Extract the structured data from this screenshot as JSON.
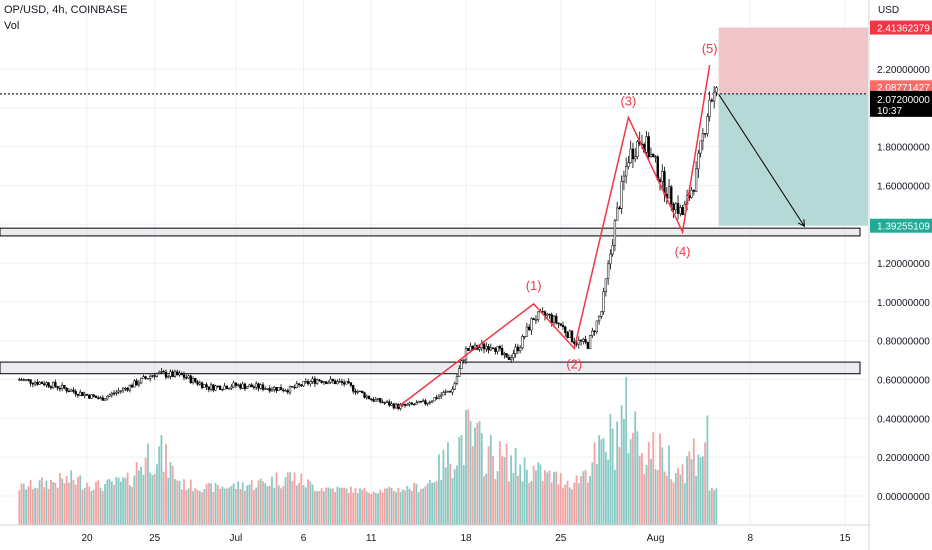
{
  "header": {
    "symbol_line": "OP/USD, 4h, COINBASE",
    "indicator": "Vol"
  },
  "price_axis": {
    "currency": "USD",
    "ticks": [
      "2.20000000",
      "2.00000000",
      "1.80000000",
      "1.60000000",
      "1.40000000",
      "1.20000000",
      "1.00000000",
      "0.80000000",
      "0.60000000",
      "0.40000000",
      "0.20000000",
      "0.00000000"
    ],
    "tick_values": [
      2.2,
      2.0,
      1.8,
      1.6,
      1.4,
      1.2,
      1.0,
      0.8,
      0.6,
      0.4,
      0.2,
      0.0
    ]
  },
  "time_axis": {
    "labels": [
      "20",
      "25",
      "Jul",
      "6",
      "11",
      "18",
      "25",
      "Aug",
      "8",
      "15"
    ]
  },
  "price_tags": {
    "stop": "2.41362379",
    "last_close": "2.08771427",
    "current": "2.07200000",
    "countdown": "10:37",
    "target": "1.39255109"
  },
  "wave_labels": [
    "(1)",
    "(2)",
    "(3)",
    "(4)",
    "(5)"
  ],
  "colors": {
    "candle": "#000000",
    "volume_up": "#89c9c4",
    "volume_down": "#f3a3a3",
    "wave_line": "#f23645",
    "wave_text": "#f23645",
    "stop_zone": "#f0c5c9",
    "target_zone": "#b5d9d6",
    "stop_tag": "#f23645",
    "target_tag": "#22ab94",
    "price_tag": "#000000",
    "grid": "#eef0f3",
    "zone_box": "#d1d4dc"
  },
  "chart_data": {
    "type": "line",
    "title": "OP/USD, 4h, COINBASE",
    "xlabel": "",
    "ylabel": "",
    "ylim": [
      -0.05,
      2.55
    ],
    "x": [
      "2022-06-20",
      "2022-06-25",
      "2022-07-01",
      "2022-07-06",
      "2022-07-11",
      "2022-07-18",
      "2022-07-25",
      "2022-08-01",
      "2022-08-08",
      "2022-08-15"
    ],
    "series": [
      {
        "values": [
          [
            "2022-06-15",
            0.6
          ],
          [
            "2022-06-17",
            0.58
          ],
          [
            "2022-06-19",
            0.54
          ],
          [
            "2022-06-21",
            0.5
          ],
          [
            "2022-06-23",
            0.56
          ],
          [
            "2022-06-25",
            0.63
          ],
          [
            "2022-06-27",
            0.62
          ],
          [
            "2022-06-29",
            0.56
          ],
          [
            "2022-07-01",
            0.57
          ],
          [
            "2022-07-03",
            0.56
          ],
          [
            "2022-07-05",
            0.55
          ],
          [
            "2022-07-07",
            0.6
          ],
          [
            "2022-07-09",
            0.58
          ],
          [
            "2022-07-11",
            0.5
          ],
          [
            "2022-07-13",
            0.46
          ],
          [
            "2022-07-15",
            0.48
          ],
          [
            "2022-07-17",
            0.55
          ],
          [
            "2022-07-18",
            0.75
          ],
          [
            "2022-07-20",
            0.78
          ],
          [
            "2022-07-21",
            0.7
          ],
          [
            "2022-07-22",
            0.78
          ],
          [
            "2022-07-23",
            0.92
          ],
          [
            "2022-07-24",
            0.93
          ],
          [
            "2022-07-25",
            0.88
          ],
          [
            "2022-07-26",
            0.8
          ],
          [
            "2022-07-27",
            0.78
          ],
          [
            "2022-07-28",
            0.95
          ],
          [
            "2022-07-29",
            1.4
          ],
          [
            "2022-07-30",
            1.75
          ],
          [
            "2022-07-31",
            1.85
          ],
          [
            "2022-08-01",
            1.7
          ],
          [
            "2022-08-02",
            1.55
          ],
          [
            "2022-08-03",
            1.45
          ],
          [
            "2022-08-04",
            1.65
          ],
          [
            "2022-08-05",
            2.05
          ],
          [
            "2022-08-05T16:00",
            2.072
          ]
        ]
      }
    ],
    "volume": [
      [
        "2022-06-15",
        0.05
      ],
      [
        "2022-06-17",
        0.08
      ],
      [
        "2022-06-19",
        0.1
      ],
      [
        "2022-06-21",
        0.06
      ],
      [
        "2022-06-23",
        0.09
      ],
      [
        "2022-06-25",
        0.3
      ],
      [
        "2022-06-27",
        0.07
      ],
      [
        "2022-06-29",
        0.05
      ],
      [
        "2022-07-01",
        0.06
      ],
      [
        "2022-07-03",
        0.08
      ],
      [
        "2022-07-05",
        0.12
      ],
      [
        "2022-07-07",
        0.05
      ],
      [
        "2022-07-09",
        0.04
      ],
      [
        "2022-07-11",
        0.03
      ],
      [
        "2022-07-13",
        0.04
      ],
      [
        "2022-07-15",
        0.06
      ],
      [
        "2022-07-18",
        0.36
      ],
      [
        "2022-07-20",
        0.24
      ],
      [
        "2022-07-22",
        0.18
      ],
      [
        "2022-07-24",
        0.12
      ],
      [
        "2022-07-26",
        0.08
      ],
      [
        "2022-07-28",
        0.26
      ],
      [
        "2022-07-30",
        0.48
      ],
      [
        "2022-07-31",
        0.3
      ],
      [
        "2022-08-02",
        0.22
      ],
      [
        "2022-08-03",
        0.16
      ],
      [
        "2022-08-04",
        0.28
      ],
      [
        "2022-08-05",
        0.34
      ]
    ],
    "waves": [
      [
        "2022-07-13",
        0.46
      ],
      [
        "2022-07-23",
        0.99
      ],
      [
        "2022-07-26",
        0.76
      ],
      [
        "2022-07-30",
        1.95
      ],
      [
        "2022-08-03",
        1.36
      ],
      [
        "2022-08-05",
        2.22
      ]
    ],
    "support_zone": [
      0.63,
      0.69
    ],
    "resistance_zone": [
      1.34,
      1.38
    ],
    "position": {
      "stop": 2.41362379,
      "entry": 2.072,
      "target": 1.39255109,
      "start": "2022-08-05T16:00",
      "end": "2022-08-13"
    },
    "arrow": [
      [
        "2022-08-05T16:00",
        2.07
      ],
      [
        "2022-08-12",
        1.39
      ]
    ],
    "grid": true
  }
}
